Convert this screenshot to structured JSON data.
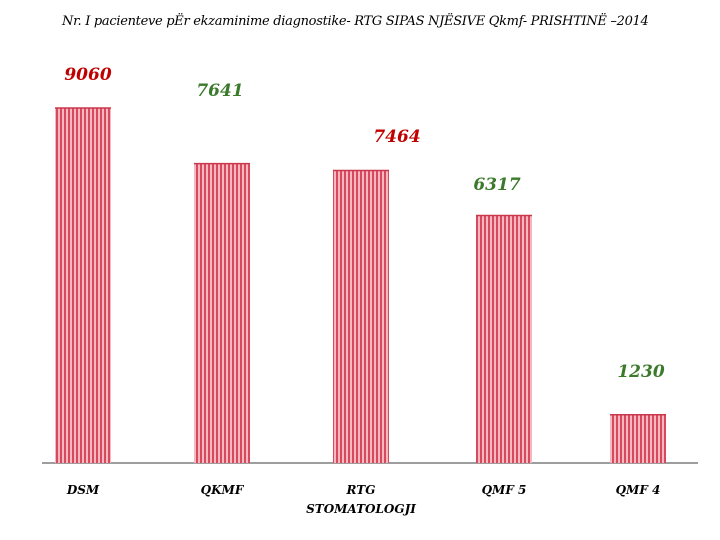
{
  "chart_data": {
    "type": "bar",
    "title": "Nr. I pacienteve pËr ekzaminime diagnostike- RTG SIPAS NJËSIVE Qkmf- PRISHTINË –2014",
    "categories": [
      [
        "DSM"
      ],
      [
        "QKMF"
      ],
      [
        "RTG",
        "STOMATOLOGJI"
      ],
      [
        "QMF 5"
      ],
      [
        "QMF 4"
      ]
    ],
    "values": [
      9060,
      7641,
      7464,
      6317,
      1230
    ],
    "value_label_colors": [
      "#c00000",
      "#3a7a2a",
      "#c00000",
      "#3a7a2a",
      "#3a7a2a"
    ],
    "bar_color": "#e06070",
    "ylim": [
      0,
      9060
    ],
    "grid": false,
    "legend": "none"
  }
}
